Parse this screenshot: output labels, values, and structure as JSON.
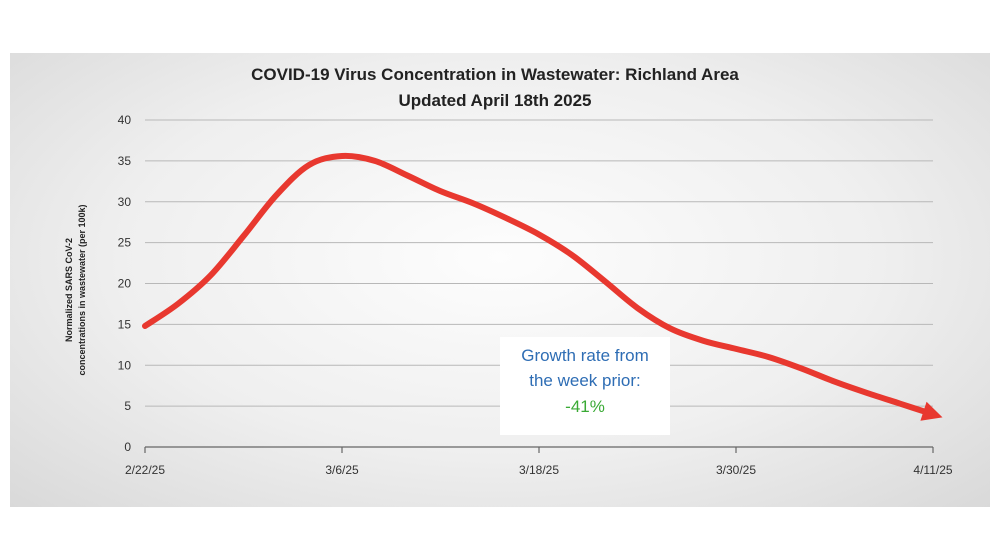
{
  "chart_data": {
    "type": "line",
    "title": "COVID-19 Virus Concentration in Wastewater: Richland Area",
    "subtitle": "Updated April 18th 2025",
    "ylabel_lines": [
      "Normalized SARS CoV-2",
      "concentrations in wastewater (per 100k)"
    ],
    "xlabel": "",
    "ylim": [
      0,
      40
    ],
    "yticks": [
      0,
      5,
      10,
      15,
      20,
      25,
      30,
      35,
      40
    ],
    "xlim": [
      "2/22/25",
      "4/11/25"
    ],
    "xtick_labels": [
      "2/22/25",
      "3/6/25",
      "3/18/25",
      "3/30/25",
      "4/11/25"
    ],
    "grid": true,
    "colors": {
      "line": "#e8382f",
      "annotation_label": "#2e6db4",
      "annotation_value": "#3aaa35"
    },
    "series": [
      {
        "x": [
          "2/22/25",
          "2/24/25",
          "2/26/25",
          "2/28/25",
          "3/2/25",
          "3/4/25",
          "3/6/25",
          "3/8/25",
          "3/10/25",
          "3/12/25",
          "3/14/25",
          "3/16/25",
          "3/18/25",
          "3/20/25",
          "3/22/25",
          "3/24/25",
          "3/26/25",
          "3/28/25",
          "3/30/25",
          "4/1/25",
          "4/3/25",
          "4/5/25",
          "4/7/25",
          "4/9/25",
          "4/11/25"
        ],
        "y": [
          14.8,
          17.5,
          21.0,
          25.8,
          30.8,
          34.5,
          35.6,
          35.0,
          33.2,
          31.3,
          29.8,
          28.0,
          26.0,
          23.5,
          20.3,
          17.0,
          14.5,
          13.0,
          12.0,
          11.0,
          9.6,
          8.0,
          6.6,
          5.3,
          4.0
        ]
      }
    ],
    "annotation": {
      "lines": [
        "Growth rate from",
        "the week prior:"
      ],
      "value": "-41%"
    }
  }
}
